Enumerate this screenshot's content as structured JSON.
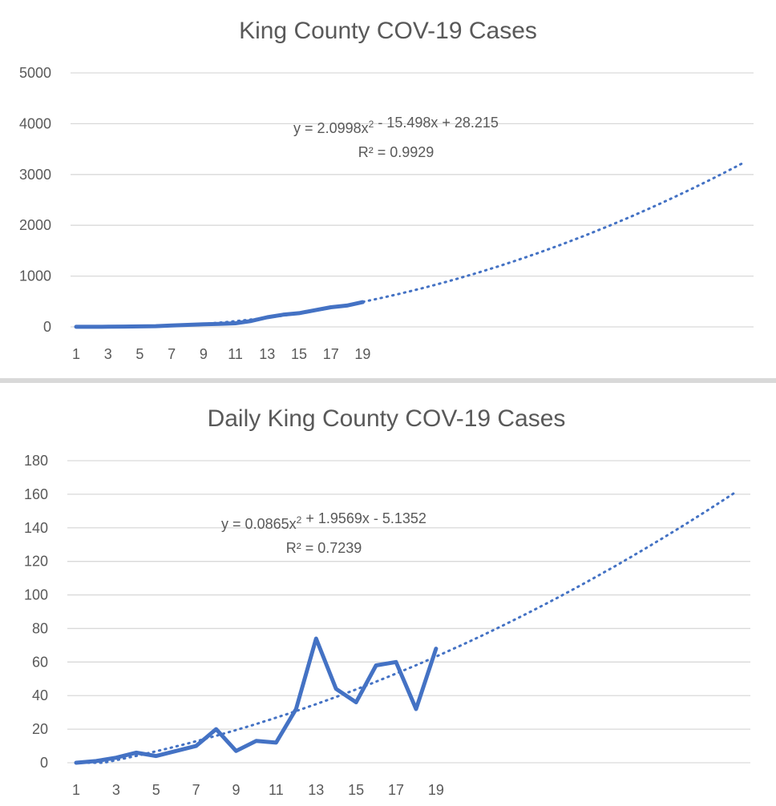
{
  "chart_data": [
    {
      "type": "line",
      "title": "King County COV-19 Cases",
      "x": [
        1,
        2,
        3,
        4,
        5,
        6,
        7,
        8,
        9,
        10,
        11,
        12,
        13,
        14,
        15,
        16,
        17,
        18,
        19
      ],
      "x_tick_labels": [
        "1",
        "3",
        "5",
        "7",
        "9",
        "11",
        "13",
        "15",
        "17",
        "19"
      ],
      "ylim": [
        0,
        5000
      ],
      "y_ticks": [
        "0",
        "1000",
        "2000",
        "3000",
        "4000",
        "5000"
      ],
      "grid": true,
      "series": [
        {
          "values": [
            1,
            2,
            3,
            6,
            10,
            14,
            27,
            39,
            51,
            58,
            71,
            116,
            190,
            240,
            270,
            328,
            387,
            420,
            488
          ],
          "color": "#4472c4",
          "style": "solid"
        }
      ],
      "trendline": {
        "type": "polynomial",
        "order": 2,
        "color": "#4472c4",
        "style": "dotted",
        "coefficients": [
          2.0998,
          -15.498,
          28.215
        ],
        "x_range": [
          1,
          43
        ],
        "equation_label": "y = 2.0998x² - 15.498x + 28.215",
        "r2_label": "R² = 0.9929"
      }
    },
    {
      "type": "line",
      "title": "Daily King County COV-19 Cases",
      "x": [
        1,
        2,
        3,
        4,
        5,
        6,
        7,
        8,
        9,
        10,
        11,
        12,
        13,
        14,
        15,
        16,
        17,
        18,
        19
      ],
      "x_tick_labels": [
        "1",
        "3",
        "5",
        "7",
        "9",
        "11",
        "13",
        "15",
        "17",
        "19"
      ],
      "ylim": [
        0,
        180
      ],
      "y_ticks": [
        "0",
        "20",
        "40",
        "60",
        "80",
        "100",
        "120",
        "140",
        "160",
        "180"
      ],
      "grid": true,
      "series": [
        {
          "values": [
            0,
            1,
            3,
            6,
            4,
            7,
            10,
            20,
            7,
            13,
            12,
            32,
            74,
            44,
            36,
            58,
            60,
            32,
            68
          ],
          "color": "#4472c4",
          "style": "solid"
        }
      ],
      "trendline": {
        "type": "polynomial",
        "order": 2,
        "color": "#4472c4",
        "style": "dotted",
        "coefficients": [
          0.0865,
          1.9569,
          -5.1352
        ],
        "x_range": [
          1,
          34
        ],
        "equation_label": "y = 0.0865x² + 1.9569x - 5.1352",
        "r2_label": "R² = 0.7239"
      }
    }
  ]
}
